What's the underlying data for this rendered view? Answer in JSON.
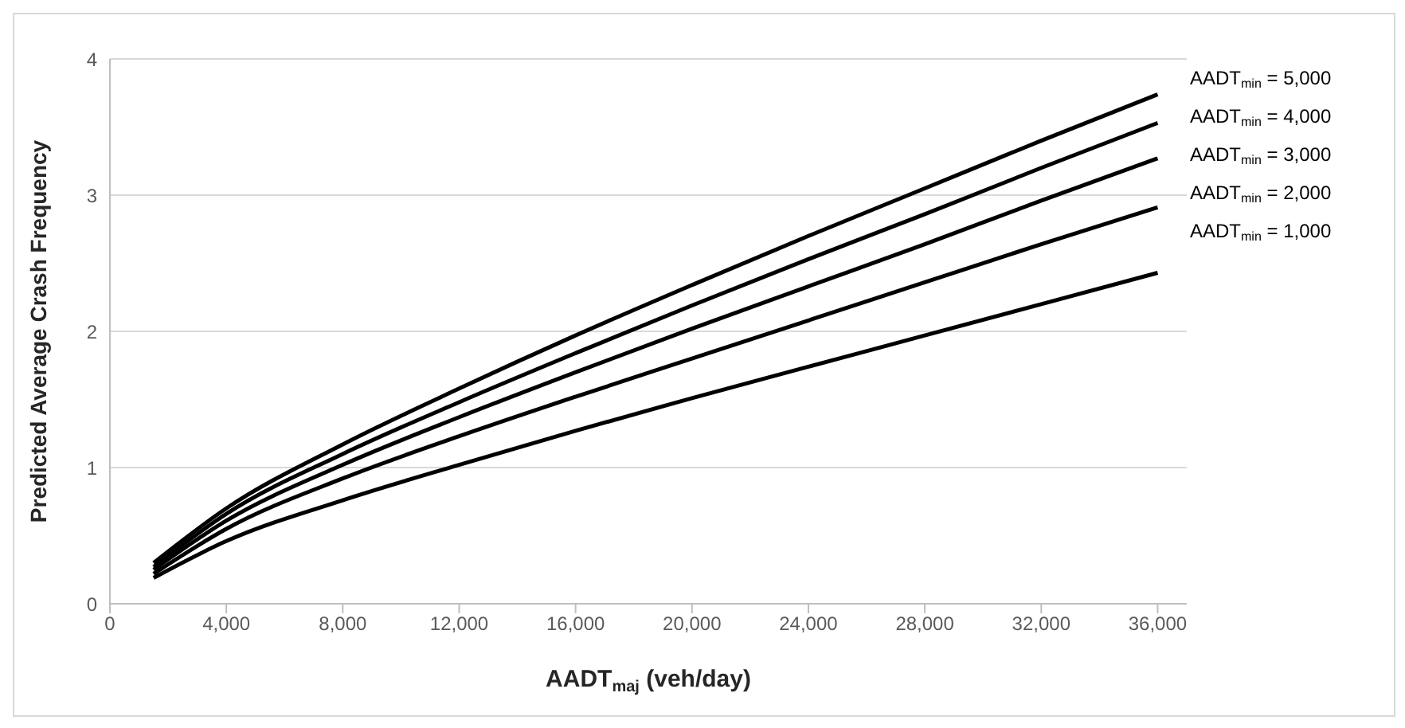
{
  "chart_data": {
    "type": "line",
    "xlabel": "AADT$_{maj}$ (veh/day)",
    "ylabel": "Predicted Average Crash Frequency",
    "x": [
      1500,
      4000,
      8000,
      12000,
      16000,
      20000,
      24000,
      28000,
      32000,
      36000
    ],
    "series": [
      {
        "name": "AADT$_{min}$ = 5,000",
        "color": "#000000",
        "values": [
          0.3,
          0.7,
          1.17,
          1.58,
          1.97,
          2.34,
          2.7,
          3.05,
          3.4,
          3.74
        ]
      },
      {
        "name": "AADT$_{min}$ = 4,000",
        "color": "#000000",
        "values": [
          0.27,
          0.66,
          1.1,
          1.48,
          1.84,
          2.19,
          2.53,
          2.86,
          3.2,
          3.53
        ]
      },
      {
        "name": "AADT$_{min}$ = 3,000",
        "color": "#000000",
        "values": [
          0.25,
          0.61,
          1.02,
          1.37,
          1.7,
          2.02,
          2.33,
          2.64,
          2.96,
          3.27
        ]
      },
      {
        "name": "AADT$_{min}$ = 2,000",
        "color": "#000000",
        "values": [
          0.22,
          0.55,
          0.92,
          1.23,
          1.52,
          1.8,
          2.08,
          2.36,
          2.64,
          2.91
        ]
      },
      {
        "name": "AADT$_{min}$ = 1,000",
        "color": "#000000",
        "values": [
          0.19,
          0.46,
          0.76,
          1.02,
          1.27,
          1.51,
          1.74,
          1.97,
          2.2,
          2.43
        ]
      }
    ],
    "xlim": [
      0,
      37000
    ],
    "xticks": [
      {
        "value": 0,
        "label": "0"
      },
      {
        "value": 4000,
        "label": "4,000"
      },
      {
        "value": 8000,
        "label": "8,000"
      },
      {
        "value": 12000,
        "label": "12,000"
      },
      {
        "value": 16000,
        "label": "16,000"
      },
      {
        "value": 20000,
        "label": "20,000"
      },
      {
        "value": 24000,
        "label": "24,000"
      },
      {
        "value": 28000,
        "label": "28,000"
      },
      {
        "value": 32000,
        "label": "32,000"
      },
      {
        "value": 36000,
        "label": "36,000"
      }
    ],
    "ylim": [
      0,
      4
    ],
    "yticks": [
      0,
      1,
      2,
      3,
      4
    ],
    "grid": "y",
    "legend": "right",
    "marker": "none",
    "line_style": "solid"
  }
}
